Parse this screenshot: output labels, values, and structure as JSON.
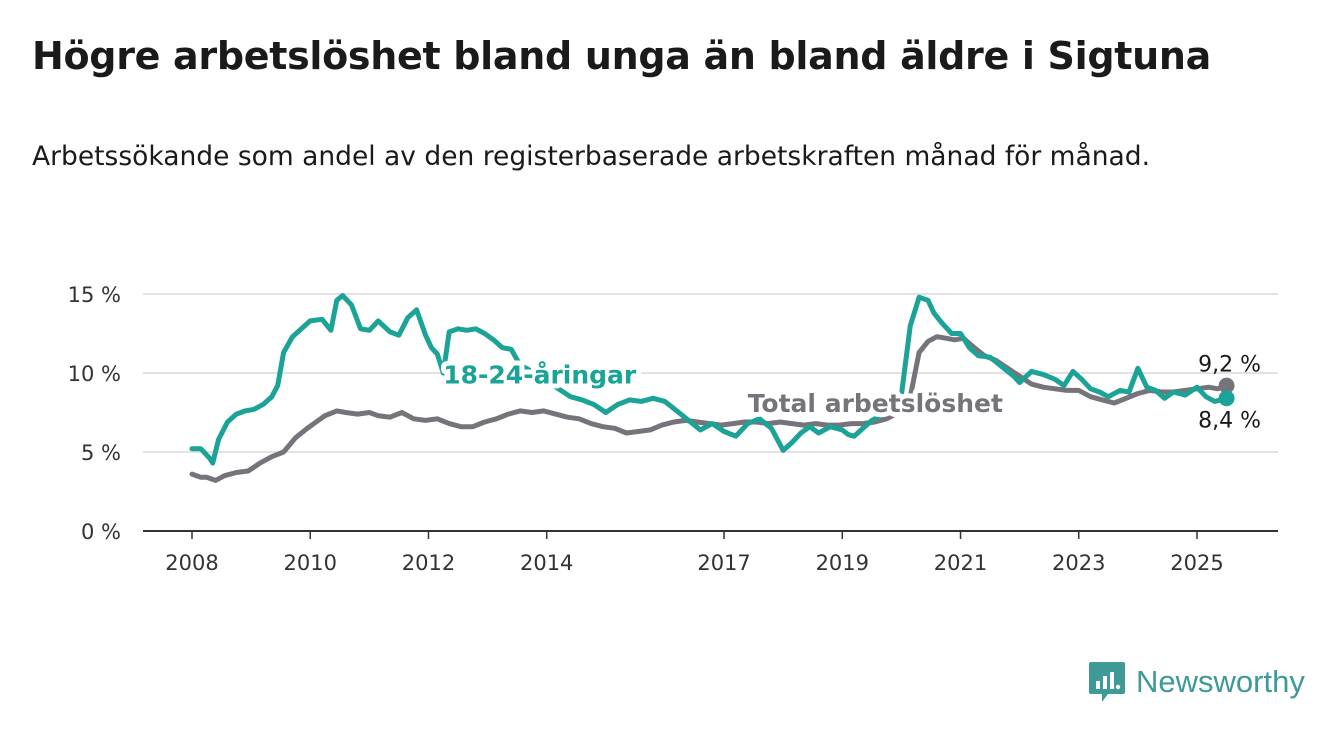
{
  "title": "Högre arbetslöshet bland unga än bland äldre i Sigtuna",
  "subtitle": "Arbetssökande som andel av den registerbaserade arbetskraften månad för månad.",
  "brand": {
    "name": "Newsworthy",
    "icon": "newsworthy-logo-icon"
  },
  "chart_data": {
    "type": "line",
    "title": "Högre arbetslöshet bland unga än bland äldre i Sigtuna",
    "subtitle": "Arbetssökande som andel av den registerbaserade arbetskraften månad för månad.",
    "xlabel": "",
    "ylabel": "",
    "x_range": [
      2008,
      2025.5
    ],
    "x_ticks": [
      2008,
      2010,
      2012,
      2014,
      2017,
      2019,
      2021,
      2023,
      2025
    ],
    "x_tick_labels": [
      "2008",
      "2010",
      "2012",
      "2014",
      "2017",
      "2019",
      "2021",
      "2023",
      "2025"
    ],
    "ylim": [
      0,
      15
    ],
    "y_ticks": [
      0,
      5,
      10,
      15
    ],
    "y_tick_labels": [
      "0 %",
      "5 %",
      "10 %",
      "15 %"
    ],
    "grid": true,
    "legend": "inline labels",
    "series": [
      {
        "name": "18-24-åringar",
        "color": "#1aa396",
        "end_label": "8,4 %",
        "x": [
          2008.0,
          2008.15,
          2008.3,
          2008.35,
          2008.45,
          2008.6,
          2008.75,
          2008.9,
          2009.05,
          2009.2,
          2009.35,
          2009.45,
          2009.55,
          2009.7,
          2009.85,
          2010.0,
          2010.2,
          2010.35,
          2010.45,
          2010.55,
          2010.7,
          2010.85,
          2011.0,
          2011.15,
          2011.35,
          2011.5,
          2011.65,
          2011.8,
          2011.95,
          2012.05,
          2012.15,
          2012.25,
          2012.35,
          2012.5,
          2012.65,
          2012.8,
          2012.95,
          2013.1,
          2013.25,
          2013.4,
          2013.55,
          2013.7,
          2013.85,
          2014.0,
          2014.2,
          2014.4,
          2014.6,
          2014.8,
          2015.0,
          2015.2,
          2015.4,
          2015.6,
          2015.8,
          2016.0,
          2016.2,
          2016.4,
          2016.6,
          2016.8,
          2017.0,
          2017.2,
          2017.4,
          2017.6,
          2017.8,
          2018.0,
          2018.15,
          2018.3,
          2018.45,
          2018.6,
          2018.8,
          2019.0,
          2019.1,
          2019.2,
          2019.35,
          2019.5,
          2019.65,
          2019.8,
          2020.0,
          2020.15,
          2020.3,
          2020.45,
          2020.55,
          2020.7,
          2020.85,
          2021.0,
          2021.15,
          2021.3,
          2021.5,
          2021.7,
          2021.9,
          2022.0,
          2022.2,
          2022.4,
          2022.6,
          2022.75,
          2022.9,
          2023.05,
          2023.2,
          2023.35,
          2023.5,
          2023.7,
          2023.85,
          2024.0,
          2024.15,
          2024.3,
          2024.45,
          2024.6,
          2024.8,
          2025.0,
          2025.15,
          2025.3,
          2025.4,
          2025.5
        ],
        "values": [
          5.2,
          5.2,
          4.6,
          4.3,
          5.8,
          6.9,
          7.4,
          7.6,
          7.7,
          8.0,
          8.5,
          9.2,
          11.3,
          12.3,
          12.8,
          13.3,
          13.4,
          12.7,
          14.6,
          14.9,
          14.3,
          12.8,
          12.7,
          13.3,
          12.6,
          12.4,
          13.5,
          14.0,
          12.4,
          11.6,
          11.2,
          10.0,
          12.6,
          12.8,
          12.7,
          12.8,
          12.5,
          12.1,
          11.6,
          11.5,
          10.5,
          10.2,
          9.8,
          9.5,
          9.0,
          8.5,
          8.3,
          8.0,
          7.5,
          8.0,
          8.3,
          8.2,
          8.4,
          8.2,
          7.6,
          7.0,
          6.4,
          6.8,
          6.3,
          6.0,
          6.8,
          7.1,
          6.5,
          5.1,
          5.6,
          6.2,
          6.6,
          6.2,
          6.6,
          6.4,
          6.1,
          6.0,
          6.5,
          7.0,
          7.3,
          7.6,
          8.6,
          13.0,
          14.8,
          14.6,
          13.8,
          13.1,
          12.5,
          12.5,
          11.6,
          11.1,
          11.0,
          10.4,
          9.8,
          9.4,
          10.1,
          9.9,
          9.6,
          9.2,
          10.1,
          9.6,
          9.0,
          8.8,
          8.5,
          8.9,
          8.8,
          10.3,
          9.1,
          8.9,
          8.4,
          8.8,
          8.6,
          9.1,
          8.5,
          8.2,
          8.3,
          8.4
        ]
      },
      {
        "name": "Total arbetslöshet",
        "color": "#77737a",
        "end_label": "9,2 %",
        "x": [
          2008.0,
          2008.15,
          2008.25,
          2008.4,
          2008.55,
          2008.75,
          2008.95,
          2009.15,
          2009.35,
          2009.55,
          2009.75,
          2009.95,
          2010.1,
          2010.25,
          2010.45,
          2010.6,
          2010.8,
          2011.0,
          2011.15,
          2011.35,
          2011.55,
          2011.75,
          2011.95,
          2012.15,
          2012.35,
          2012.55,
          2012.75,
          2012.95,
          2013.15,
          2013.35,
          2013.55,
          2013.75,
          2013.95,
          2014.15,
          2014.35,
          2014.55,
          2014.75,
          2014.95,
          2015.15,
          2015.35,
          2015.55,
          2015.75,
          2015.95,
          2016.15,
          2016.35,
          2016.55,
          2016.75,
          2016.95,
          2017.15,
          2017.35,
          2017.55,
          2017.75,
          2017.95,
          2018.15,
          2018.35,
          2018.55,
          2018.75,
          2018.95,
          2019.15,
          2019.35,
          2019.55,
          2019.75,
          2019.95,
          2020.15,
          2020.3,
          2020.45,
          2020.6,
          2020.75,
          2020.9,
          2021.05,
          2021.2,
          2021.4,
          2021.6,
          2021.8,
          2022.0,
          2022.2,
          2022.4,
          2022.6,
          2022.8,
          2023.0,
          2023.2,
          2023.4,
          2023.6,
          2023.8,
          2024.0,
          2024.2,
          2024.4,
          2024.6,
          2024.8,
          2025.0,
          2025.2,
          2025.35,
          2025.5
        ],
        "values": [
          3.6,
          3.4,
          3.4,
          3.2,
          3.5,
          3.7,
          3.8,
          4.3,
          4.7,
          5.0,
          5.9,
          6.5,
          6.9,
          7.3,
          7.6,
          7.5,
          7.4,
          7.5,
          7.3,
          7.2,
          7.5,
          7.1,
          7.0,
          7.1,
          6.8,
          6.6,
          6.6,
          6.9,
          7.1,
          7.4,
          7.6,
          7.5,
          7.6,
          7.4,
          7.2,
          7.1,
          6.8,
          6.6,
          6.5,
          6.2,
          6.3,
          6.4,
          6.7,
          6.9,
          7.0,
          6.9,
          6.8,
          6.7,
          6.8,
          6.9,
          6.9,
          6.8,
          6.9,
          6.8,
          6.7,
          6.8,
          6.7,
          6.7,
          6.8,
          6.8,
          6.9,
          7.1,
          7.5,
          8.5,
          11.3,
          12.0,
          12.3,
          12.2,
          12.1,
          12.2,
          11.7,
          11.1,
          10.8,
          10.3,
          9.8,
          9.3,
          9.1,
          9.0,
          8.9,
          8.9,
          8.5,
          8.3,
          8.1,
          8.4,
          8.7,
          8.9,
          8.8,
          8.8,
          8.9,
          9.0,
          9.1,
          9.0,
          9.2
        ]
      }
    ],
    "annotations": [
      {
        "text": "18-24-åringar",
        "series": "18-24-åringar",
        "x": 2012.25,
        "y": 9.9
      },
      {
        "text": "Total arbetslöshet",
        "series": "Total arbetslöshet",
        "x": 2017.4,
        "y": 8.1
      }
    ]
  }
}
